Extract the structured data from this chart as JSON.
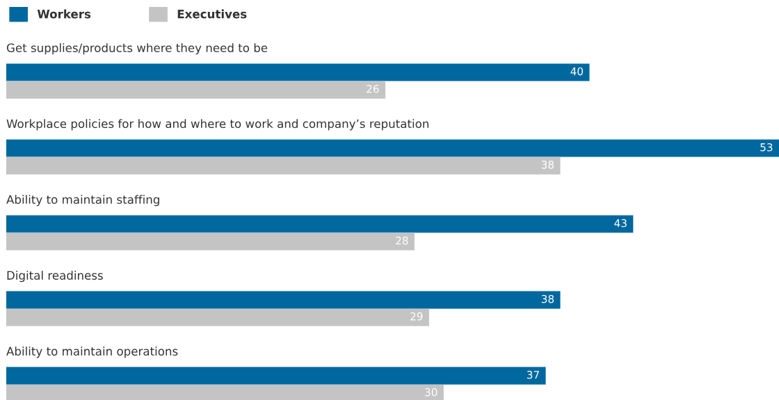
{
  "chart_data": {
    "type": "bar",
    "orientation": "horizontal",
    "categories": [
      "Get supplies/products where they need to be",
      "Workplace policies for how and where to work and company’s reputation",
      "Ability to maintain staffing",
      "Digital readiness",
      "Ability to maintain operations"
    ],
    "series": [
      {
        "name": "Workers",
        "color": "#00689f",
        "values": [
          40,
          53,
          43,
          38,
          37
        ]
      },
      {
        "name": "Executives",
        "color": "#c4c4c4",
        "values": [
          26,
          38,
          28,
          29,
          30
        ]
      }
    ],
    "data_labels": true,
    "legend": "top left"
  }
}
